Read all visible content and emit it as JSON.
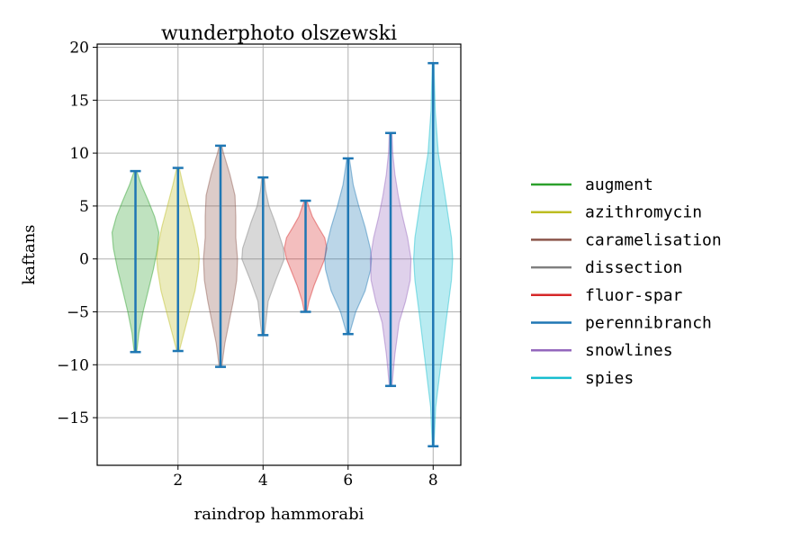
{
  "chart_data": {
    "type": "violin",
    "title": "wunderphoto olszewski",
    "xlabel": "raindrop hammorabi",
    "ylabel": "kaftans",
    "xlim": [
      0.1,
      8.65
    ],
    "ylim": [
      -19.5,
      20.3
    ],
    "xticks": [
      2,
      4,
      6,
      8
    ],
    "xtick_labels": [
      "2",
      "4",
      "6",
      "8"
    ],
    "yticks": [
      -15,
      -10,
      -5,
      0,
      5,
      10,
      15,
      20
    ],
    "ytick_labels": [
      "−15",
      "−10",
      "−5",
      "0",
      "5",
      "10",
      "15",
      "20"
    ],
    "grid": true,
    "legend_position": "right",
    "series": [
      {
        "name": "augment",
        "x": 1,
        "min": -8.8,
        "max": 8.3,
        "color": "#2ca02c",
        "profile": [
          [
            -8.8,
            0.03
          ],
          [
            -7,
            0.08
          ],
          [
            -5,
            0.18
          ],
          [
            -3,
            0.3
          ],
          [
            -1,
            0.42
          ],
          [
            1,
            0.52
          ],
          [
            2.5,
            0.55
          ],
          [
            4,
            0.45
          ],
          [
            5.5,
            0.3
          ],
          [
            7,
            0.14
          ],
          [
            8.3,
            0.03
          ]
        ]
      },
      {
        "name": "azithromycin",
        "x": 2,
        "min": -8.7,
        "max": 8.6,
        "color": "#bcbd22",
        "profile": [
          [
            -8.7,
            0.03
          ],
          [
            -7,
            0.14
          ],
          [
            -5,
            0.27
          ],
          [
            -3,
            0.4
          ],
          [
            -1,
            0.48
          ],
          [
            0,
            0.5
          ],
          [
            1,
            0.48
          ],
          [
            3,
            0.38
          ],
          [
            5,
            0.25
          ],
          [
            7,
            0.12
          ],
          [
            8.6,
            0.03
          ]
        ]
      },
      {
        "name": "caramelisation",
        "x": 3,
        "min": -10.2,
        "max": 10.7,
        "color": "#8c564b",
        "profile": [
          [
            -10.2,
            0.03
          ],
          [
            -8,
            0.1
          ],
          [
            -6,
            0.2
          ],
          [
            -4,
            0.3
          ],
          [
            -2,
            0.38
          ],
          [
            0,
            0.4
          ],
          [
            2,
            0.36
          ],
          [
            4,
            0.36
          ],
          [
            6,
            0.34
          ],
          [
            8,
            0.22
          ],
          [
            10,
            0.07
          ],
          [
            10.7,
            0.03
          ]
        ]
      },
      {
        "name": "dissection",
        "x": 4,
        "min": -7.2,
        "max": 7.7,
        "color": "#7f7f7f",
        "profile": [
          [
            -7.2,
            0.03
          ],
          [
            -5.5,
            0.08
          ],
          [
            -4,
            0.12
          ],
          [
            -2,
            0.3
          ],
          [
            0,
            0.5
          ],
          [
            1,
            0.48
          ],
          [
            2,
            0.4
          ],
          [
            3.5,
            0.28
          ],
          [
            5,
            0.14
          ],
          [
            6.5,
            0.06
          ],
          [
            7.7,
            0.03
          ]
        ]
      },
      {
        "name": "fluor-spar",
        "x": 5,
        "min": -5.0,
        "max": 5.5,
        "color": "#d62728",
        "profile": [
          [
            -5,
            0.03
          ],
          [
            -4,
            0.08
          ],
          [
            -2.5,
            0.2
          ],
          [
            -1,
            0.35
          ],
          [
            0,
            0.45
          ],
          [
            1,
            0.5
          ],
          [
            2,
            0.45
          ],
          [
            3,
            0.3
          ],
          [
            4,
            0.16
          ],
          [
            5.5,
            0.03
          ]
        ]
      },
      {
        "name": "perennibranch",
        "x": 6,
        "min": -7.1,
        "max": 9.5,
        "color": "#1f77b4",
        "profile": [
          [
            -7.1,
            0.03
          ],
          [
            -5,
            0.18
          ],
          [
            -3,
            0.4
          ],
          [
            -1,
            0.53
          ],
          [
            0,
            0.55
          ],
          [
            1,
            0.52
          ],
          [
            3,
            0.4
          ],
          [
            5,
            0.25
          ],
          [
            7,
            0.12
          ],
          [
            9.5,
            0.03
          ]
        ]
      },
      {
        "name": "snowlines",
        "x": 7,
        "min": -12.0,
        "max": 11.9,
        "color": "#9467bd",
        "profile": [
          [
            -12,
            0.03
          ],
          [
            -9,
            0.1
          ],
          [
            -6,
            0.2
          ],
          [
            -4,
            0.35
          ],
          [
            -2,
            0.46
          ],
          [
            0,
            0.48
          ],
          [
            2,
            0.4
          ],
          [
            4,
            0.28
          ],
          [
            6,
            0.18
          ],
          [
            8,
            0.1
          ],
          [
            10,
            0.05
          ],
          [
            11.9,
            0.03
          ]
        ]
      },
      {
        "name": "spies",
        "x": 8,
        "min": -17.7,
        "max": 18.5,
        "color": "#17becf",
        "profile": [
          [
            -17.7,
            0.02
          ],
          [
            -14,
            0.06
          ],
          [
            -10,
            0.18
          ],
          [
            -6,
            0.3
          ],
          [
            -2,
            0.43
          ],
          [
            0,
            0.46
          ],
          [
            2,
            0.43
          ],
          [
            6,
            0.28
          ],
          [
            10,
            0.12
          ],
          [
            14,
            0.05
          ],
          [
            18.5,
            0.02
          ]
        ]
      }
    ]
  },
  "colors": {
    "whisker": "#1f77b4"
  }
}
